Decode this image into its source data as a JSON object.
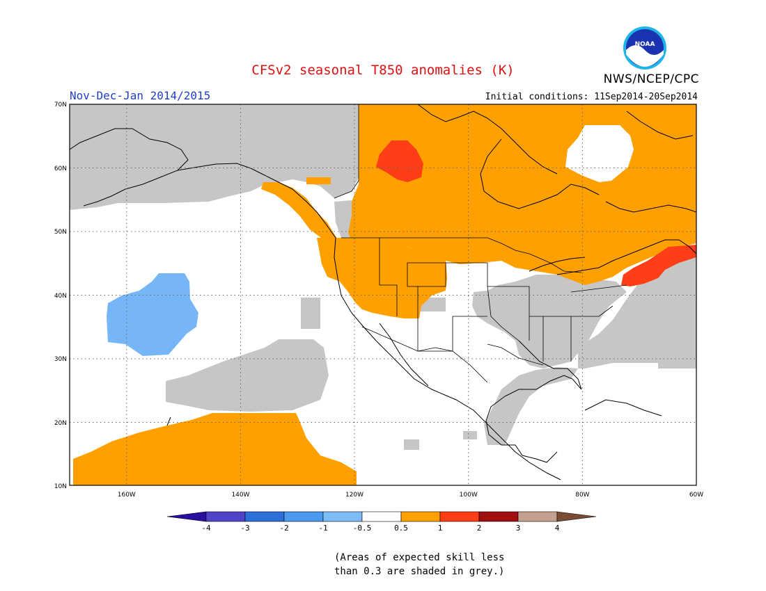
{
  "title": "CFSv2 seasonal T850 anomalies (K)",
  "organization": "NWS/NCEP/CPC",
  "period": "Nov-Dec-Jan 2014/2015",
  "initial_conditions": "Initial conditions: 11Sep2014-20Sep2014",
  "footnote_line1": "(Areas of expected skill less",
  "footnote_line2": "than 0.3 are shaded in grey.)",
  "logo_text": "NOAA",
  "map": {
    "lat_labels": [
      "70N",
      "60N",
      "50N",
      "40N",
      "30N",
      "20N",
      "10N"
    ],
    "lon_labels": [
      "160W",
      "140W",
      "120W",
      "100W",
      "80W",
      "60W"
    ],
    "colors": {
      "grey": "#c6c6c6",
      "orange": "#fea000",
      "red_orange": "#fe3e16",
      "light_blue": "#76b6f7",
      "white": "#ffffff"
    }
  },
  "colorbar": {
    "labels": [
      "-4",
      "-3",
      "-2",
      "-1",
      "-0.5",
      "0.5",
      "1",
      "2",
      "3",
      "4"
    ],
    "colors": [
      "#2a0f9e",
      "#4f44c9",
      "#2c6fd9",
      "#4c9aef",
      "#7dbcf7",
      "#ffffff",
      "#fea000",
      "#fe3e16",
      "#a01010",
      "#c6a08e",
      "#7a4c36"
    ]
  },
  "chart_data": {
    "type": "map",
    "variable": "T850 anomalies (K)",
    "region": "North America / NE Pacific, 10N-70N, 170W-60W",
    "features": [
      {
        "category": "positive 0.5-1",
        "color": "orange",
        "areas": [
          "Canada",
          "western United States",
          "tropical NE Pacific 10N-20N"
        ]
      },
      {
        "category": "positive 1-2",
        "color": "red_orange",
        "areas": [
          "NW Canada near 60N 115W",
          "New England / Maritimes"
        ]
      },
      {
        "category": "negative -0.5 to -1",
        "color": "light_blue",
        "areas": [
          "NE Pacific near 37N 155W"
        ]
      },
      {
        "category": "low skill (<0.3)",
        "color": "grey",
        "areas": [
          "Alaska",
          "NW Atlantic",
          "central/eastern United States",
          "subtropical NE Pacific",
          "eastern Mexico"
        ]
      }
    ]
  }
}
